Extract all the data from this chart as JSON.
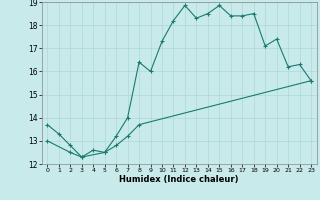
{
  "xlabel": "Humidex (Indice chaleur)",
  "ylabel": "",
  "background_color": "#c8eaea",
  "grid_color": "#afd8d8",
  "line_color": "#1a7a6e",
  "xlim": [
    -0.5,
    23.5
  ],
  "ylim": [
    12,
    19
  ],
  "yticks": [
    12,
    13,
    14,
    15,
    16,
    17,
    18,
    19
  ],
  "xticks": [
    0,
    1,
    2,
    3,
    4,
    5,
    6,
    7,
    8,
    9,
    10,
    11,
    12,
    13,
    14,
    15,
    16,
    17,
    18,
    19,
    20,
    21,
    22,
    23
  ],
  "line1_x": [
    0,
    1,
    2,
    3,
    4,
    5,
    6,
    7,
    8,
    9,
    10,
    11,
    12,
    13,
    14,
    15,
    16,
    17,
    18,
    19,
    20,
    21,
    22,
    23
  ],
  "line1_y": [
    13.7,
    13.3,
    12.8,
    12.3,
    12.6,
    12.5,
    13.2,
    14.0,
    16.4,
    16.0,
    17.3,
    18.2,
    18.85,
    18.3,
    18.5,
    18.85,
    18.4,
    18.4,
    18.5,
    17.1,
    17.4,
    16.2,
    16.3,
    15.6
  ],
  "line2_x": [
    0,
    2,
    3,
    5,
    6,
    7,
    8,
    23
  ],
  "line2_y": [
    13.0,
    12.5,
    12.3,
    12.5,
    12.8,
    13.2,
    13.7,
    15.6
  ]
}
